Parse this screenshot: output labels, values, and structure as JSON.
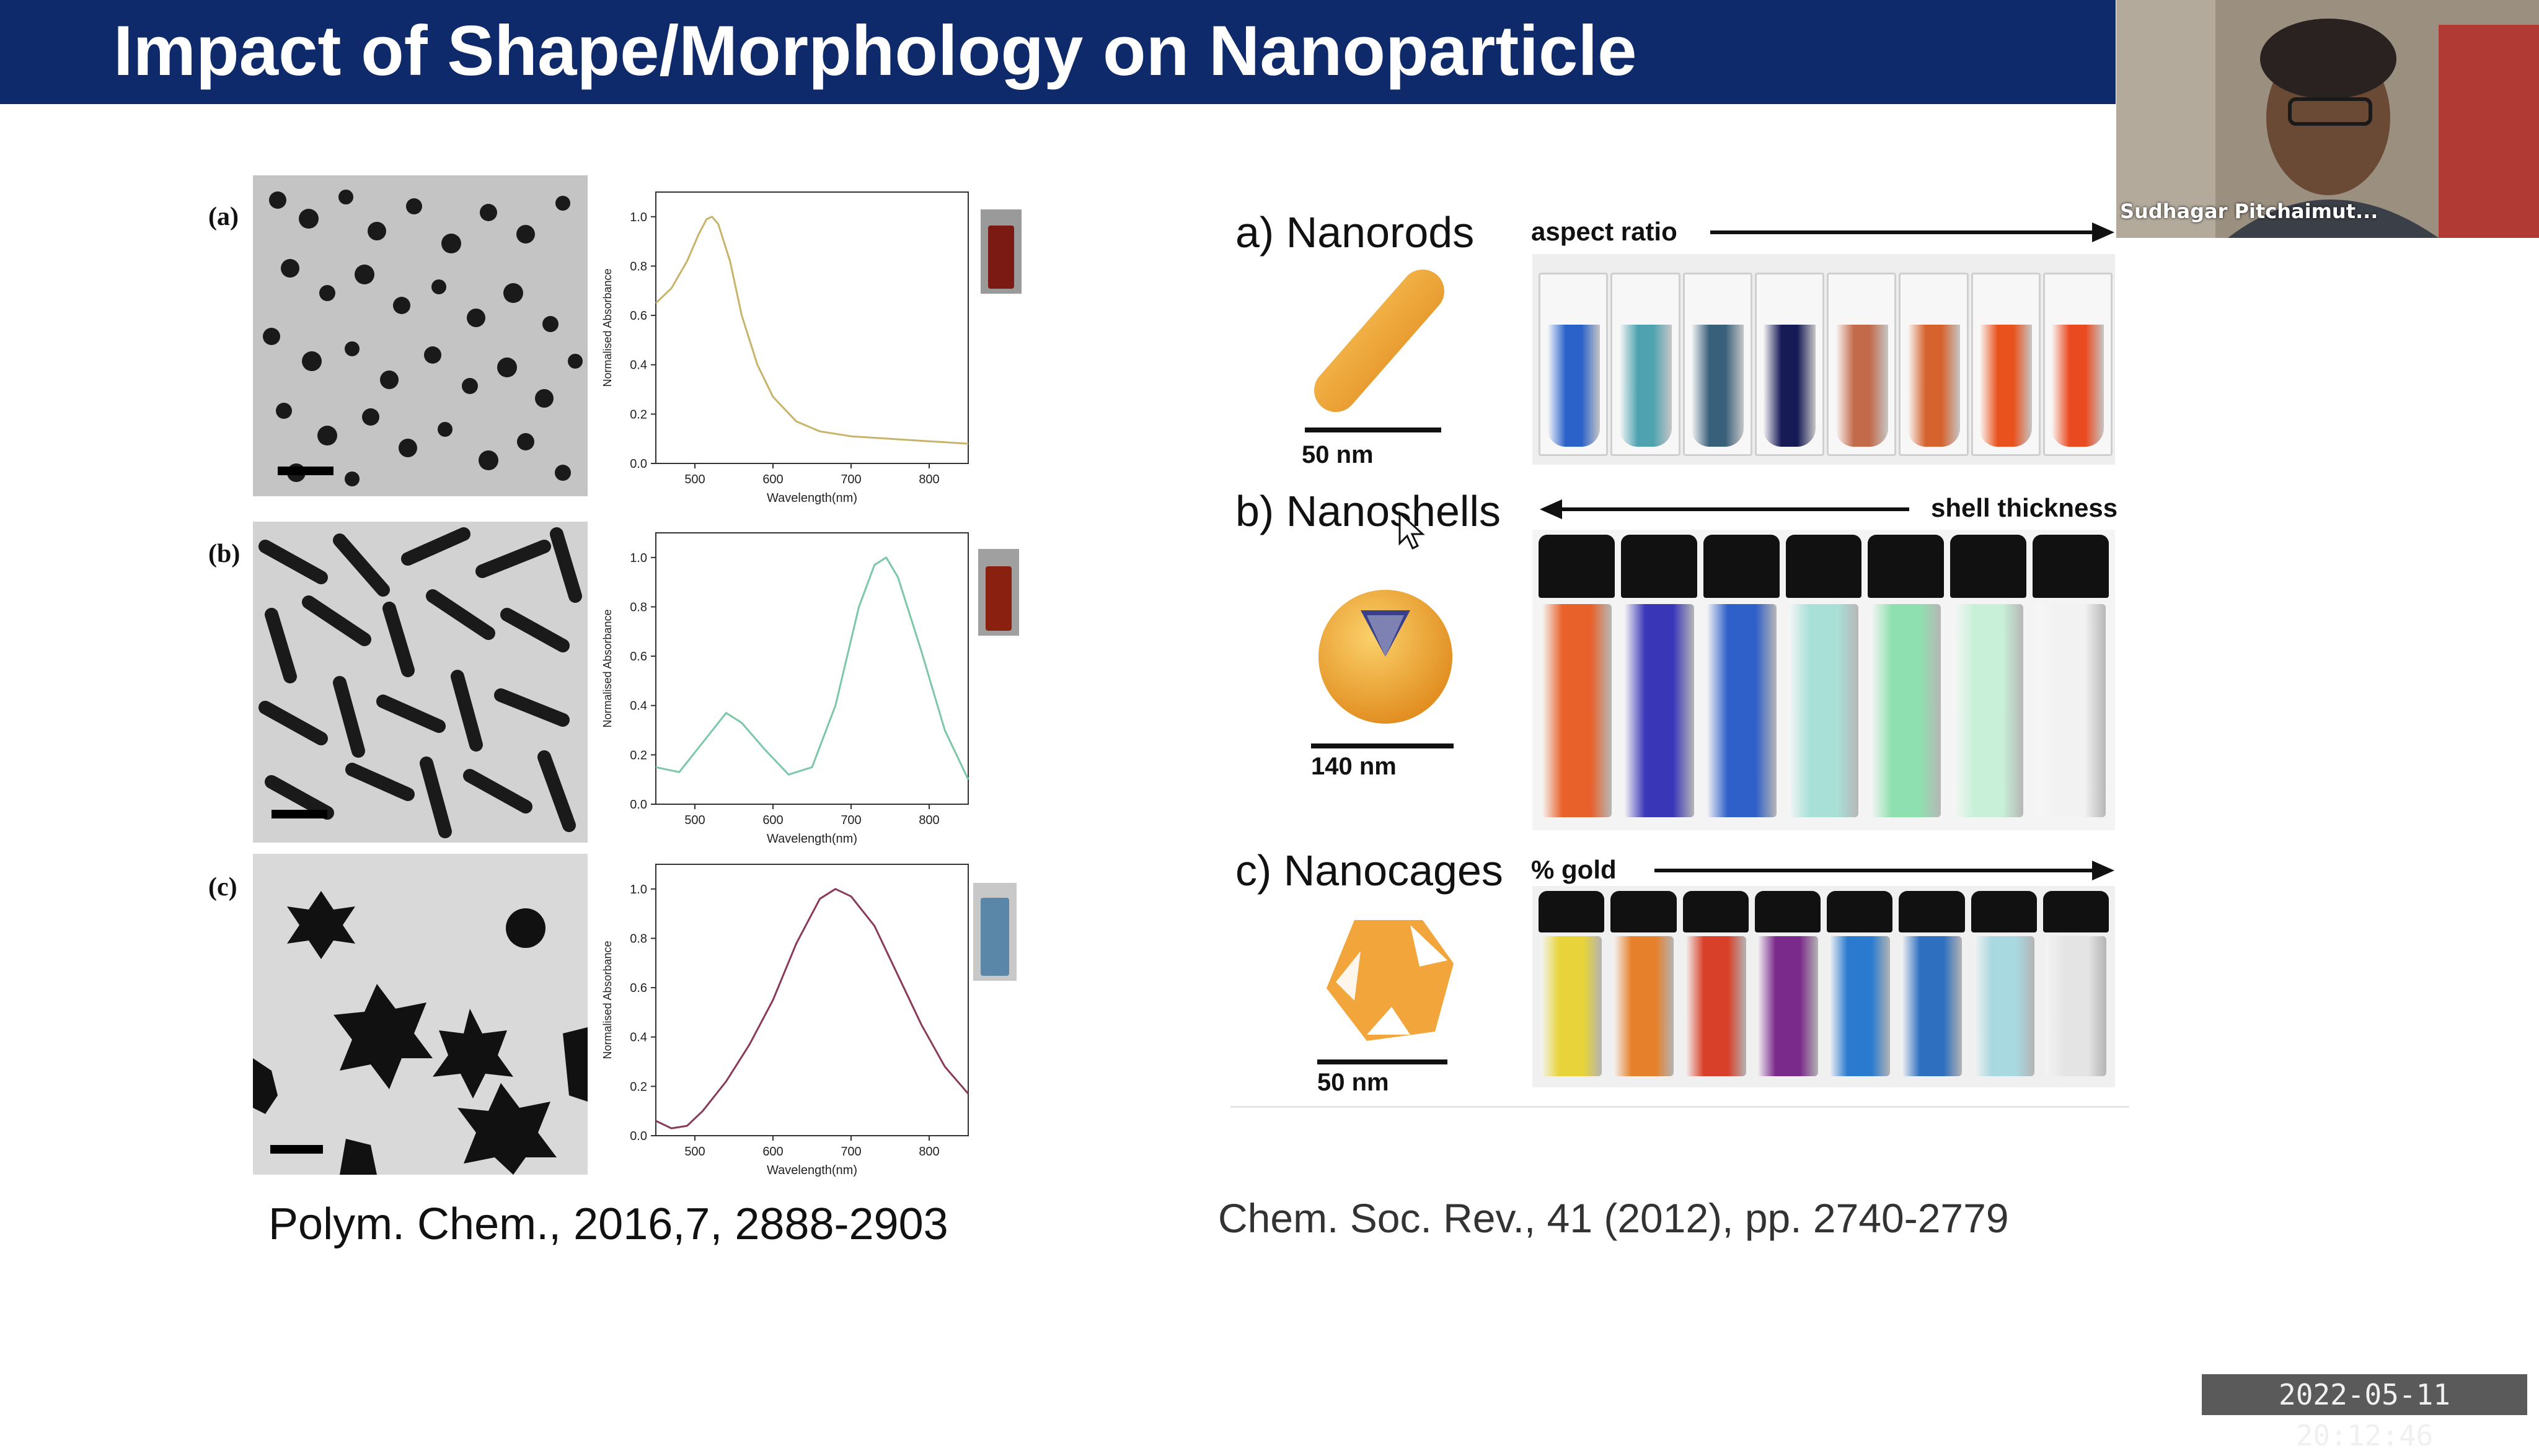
{
  "slide": {
    "title": "Impact of Shape/Morphology on Nanoparticle"
  },
  "left_figure": {
    "panels": [
      {
        "label": "(a)"
      },
      {
        "label": "(b)"
      },
      {
        "label": "(c)"
      }
    ],
    "citation": "Polym. Chem., 2016,7, 2888-2903"
  },
  "chart_data": [
    {
      "type": "line",
      "xlabel": "Wavelength(nm)",
      "ylabel": "Normalised Absorbance",
      "xlim": [
        450,
        850
      ],
      "ylim": [
        0.0,
        1.1
      ],
      "x_ticks": [
        500,
        600,
        700,
        800
      ],
      "y_ticks": [
        0.0,
        0.2,
        0.4,
        0.6,
        0.8,
        1.0
      ],
      "color": "#c8b36a",
      "x": [
        450,
        470,
        490,
        505,
        515,
        522,
        530,
        545,
        560,
        580,
        600,
        630,
        660,
        700,
        750,
        800,
        850
      ],
      "y": [
        0.65,
        0.71,
        0.82,
        0.93,
        0.99,
        1.0,
        0.97,
        0.82,
        0.6,
        0.4,
        0.27,
        0.17,
        0.13,
        0.11,
        0.1,
        0.09,
        0.08
      ]
    },
    {
      "type": "line",
      "xlabel": "Wavelength(nm)",
      "ylabel": "Normalised Absorbance",
      "xlim": [
        450,
        850
      ],
      "ylim": [
        0.0,
        1.1
      ],
      "x_ticks": [
        500,
        600,
        700,
        800
      ],
      "y_ticks": [
        0.0,
        0.2,
        0.4,
        0.6,
        0.8,
        1.0
      ],
      "color": "#7cc7a8",
      "x": [
        450,
        480,
        510,
        540,
        560,
        590,
        620,
        650,
        680,
        710,
        730,
        745,
        760,
        790,
        820,
        850
      ],
      "y": [
        0.15,
        0.13,
        0.25,
        0.37,
        0.33,
        0.22,
        0.12,
        0.15,
        0.4,
        0.8,
        0.97,
        1.0,
        0.92,
        0.62,
        0.3,
        0.1
      ]
    },
    {
      "type": "line",
      "xlabel": "Wavelength(nm)",
      "ylabel": "Normalised Absorbance",
      "xlim": [
        450,
        850
      ],
      "ylim": [
        0.0,
        1.1
      ],
      "x_ticks": [
        500,
        600,
        700,
        800
      ],
      "y_ticks": [
        0.0,
        0.2,
        0.4,
        0.6,
        0.8,
        1.0
      ],
      "color": "#8a3a5a",
      "x": [
        450,
        470,
        490,
        510,
        540,
        570,
        600,
        630,
        660,
        680,
        700,
        730,
        760,
        790,
        820,
        850
      ],
      "y": [
        0.06,
        0.03,
        0.04,
        0.1,
        0.22,
        0.37,
        0.55,
        0.78,
        0.96,
        1.0,
        0.97,
        0.85,
        0.65,
        0.45,
        0.28,
        0.17
      ]
    }
  ],
  "right_figure": {
    "nanorods": {
      "label": "a) Nanorods",
      "arrow_label": "aspect ratio",
      "scale": "50 nm",
      "vial_colors": [
        "#2a62c9",
        "#4fa3b0",
        "#39607a",
        "#161a55",
        "#c36a4a",
        "#d6622d",
        "#e9521d",
        "#ea4a1f"
      ]
    },
    "nanoshells": {
      "label": "b) Nanoshells",
      "arrow_label": "shell thickness",
      "scale": "140 nm",
      "vial_colors": [
        "#e8602a",
        "#3a36b8",
        "#2f5fc8",
        "#a8e0d8",
        "#8fe0b0",
        "#c8f0d8",
        "#f2f2f2"
      ]
    },
    "nanocages": {
      "label": "c) Nanocages",
      "arrow_label": "% gold",
      "scale": "50 nm",
      "vial_colors": [
        "#e8d43a",
        "#e6802a",
        "#d8402a",
        "#7a2a8a",
        "#2a7ad0",
        "#2f6fc0",
        "#a8d8e0",
        "#e4e4e4"
      ]
    },
    "citation": "Chem. Soc. Rev., 41 (2012), pp. 2740-2779"
  },
  "webcam": {
    "name": "Sudhagar Pitchaimut..."
  },
  "timestamp": "2022-05-11  20:12:46"
}
